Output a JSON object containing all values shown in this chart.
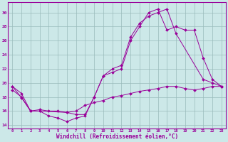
{
  "xlabel": "Windchill (Refroidissement éolien,°C)",
  "bg_color": "#cce8e8",
  "line_color": "#990099",
  "grid_color": "#99bbbb",
  "xlim": [
    -0.5,
    23.5
  ],
  "ylim": [
    13.5,
    31.5
  ],
  "xticks": [
    0,
    1,
    2,
    3,
    4,
    5,
    6,
    7,
    8,
    9,
    10,
    11,
    12,
    13,
    14,
    15,
    16,
    17,
    18,
    19,
    20,
    21,
    22,
    23
  ],
  "yticks": [
    14,
    16,
    18,
    20,
    22,
    24,
    26,
    28,
    30
  ],
  "series": [
    {
      "x": [
        0,
        1,
        2,
        3,
        4,
        5,
        6,
        7,
        8,
        9,
        10,
        11,
        12,
        13,
        14,
        15,
        16,
        17,
        18,
        21,
        22,
        23
      ],
      "y": [
        19.5,
        17.9,
        16.0,
        16.0,
        15.3,
        15.0,
        14.5,
        15.0,
        15.3,
        18.0,
        21.0,
        22.0,
        22.5,
        26.5,
        28.5,
        29.5,
        30.0,
        30.5,
        27.0,
        20.5,
        20.0,
        19.5
      ]
    },
    {
      "x": [
        0,
        1,
        2,
        3,
        4,
        5,
        6,
        7,
        8,
        9,
        10,
        11,
        12,
        13,
        14,
        15,
        16,
        17,
        18,
        19,
        20,
        21,
        22,
        23
      ],
      "y": [
        19.0,
        18.0,
        16.0,
        16.2,
        16.0,
        16.0,
        15.8,
        16.0,
        16.8,
        17.2,
        17.5,
        18.0,
        18.2,
        18.5,
        18.8,
        19.0,
        19.2,
        19.5,
        19.5,
        19.2,
        19.0,
        19.2,
        19.5,
        19.5
      ]
    },
    {
      "x": [
        0,
        1,
        2,
        3,
        6,
        7,
        8,
        9,
        10,
        11,
        12,
        13,
        14,
        15,
        16,
        17,
        18,
        19,
        20,
        21,
        22,
        23
      ],
      "y": [
        19.5,
        18.5,
        16.0,
        16.0,
        15.8,
        15.5,
        15.5,
        18.0,
        21.0,
        21.5,
        22.0,
        26.0,
        28.0,
        30.0,
        30.5,
        27.5,
        28.0,
        27.5,
        27.5,
        23.5,
        20.5,
        19.5
      ]
    }
  ]
}
